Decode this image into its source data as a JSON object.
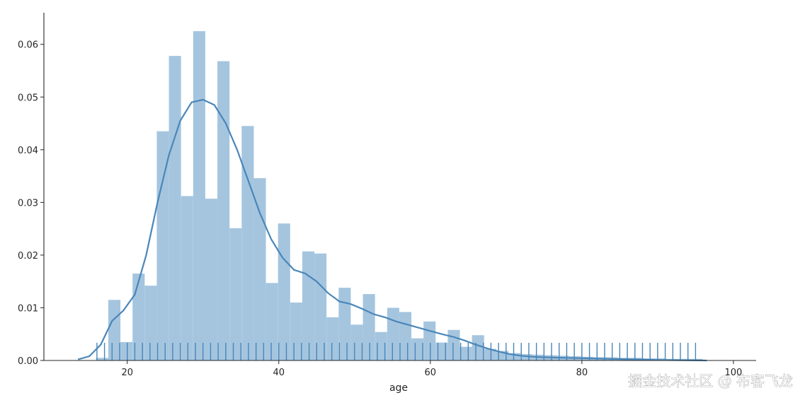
{
  "chart_data": {
    "type": "bar",
    "title": "",
    "xlabel": "age",
    "ylabel": "",
    "xlim": [
      9,
      103
    ],
    "ylim": [
      0,
      0.066
    ],
    "xticks": [
      20,
      40,
      60,
      80,
      100
    ],
    "yticks": [
      0.0,
      0.01,
      0.02,
      0.03,
      0.04,
      0.05,
      0.06
    ],
    "ytick_labels": [
      "0.00",
      "0.01",
      "0.02",
      "0.03",
      "0.04",
      "0.05",
      "0.06"
    ],
    "grid": false,
    "legend": "none",
    "bar_color": "#a5c5df",
    "line_color": "#4a86b8",
    "rug_color": "#4a86b8",
    "bin_width": 1.6,
    "bins_start": 15.9,
    "bars": [
      0.0005,
      0.0115,
      0.0035,
      0.0165,
      0.0142,
      0.0435,
      0.0578,
      0.0312,
      0.0625,
      0.0307,
      0.0568,
      0.0251,
      0.0445,
      0.0346,
      0.0147,
      0.026,
      0.011,
      0.0207,
      0.0203,
      0.0082,
      0.0138,
      0.0068,
      0.0126,
      0.0054,
      0.01,
      0.0092,
      0.0042,
      0.0074,
      0.0034,
      0.0058,
      0.0026,
      0.0048,
      0.0022,
      0.0018,
      0.0014,
      0.0012,
      0.0011,
      0.001,
      0.0009,
      0.0008,
      0.0007,
      0.0006,
      0.0006,
      0.0005,
      0.0005,
      0.0004,
      0.0004,
      0.0003,
      0.0003,
      0.0003
    ],
    "kde": {
      "x": [
        13.5,
        15,
        16.5,
        18,
        19.5,
        21,
        22.5,
        24,
        25.5,
        27,
        28.5,
        30,
        31.5,
        33,
        34.5,
        36,
        37.5,
        39,
        40.5,
        42,
        43.5,
        45,
        46.5,
        48,
        49.5,
        51,
        52.5,
        54,
        55.5,
        57,
        58.5,
        60,
        61.5,
        63,
        64.5,
        66,
        67.5,
        69,
        70.5,
        72,
        73.5,
        75,
        78,
        81,
        84,
        87,
        90,
        93,
        96.5
      ],
      "y": [
        0.0002,
        0.0008,
        0.003,
        0.0075,
        0.0095,
        0.0125,
        0.02,
        0.03,
        0.039,
        0.0455,
        0.049,
        0.0495,
        0.0485,
        0.045,
        0.04,
        0.034,
        0.028,
        0.023,
        0.0195,
        0.0172,
        0.0165,
        0.015,
        0.0128,
        0.0112,
        0.0107,
        0.0098,
        0.0088,
        0.0082,
        0.0074,
        0.0068,
        0.0062,
        0.0056,
        0.005,
        0.0045,
        0.0038,
        0.003,
        0.0023,
        0.0017,
        0.0012,
        0.0009,
        0.0007,
        0.0006,
        0.0005,
        0.0004,
        0.0003,
        0.0002,
        0.0001,
        5e-05,
        0
      ]
    },
    "rug_x": [
      16,
      17,
      18,
      19,
      20,
      21,
      22,
      23,
      24,
      25,
      26,
      27,
      28,
      29,
      30,
      31,
      32,
      33,
      34,
      35,
      36,
      37,
      38,
      39,
      40,
      41,
      42,
      43,
      44,
      45,
      46,
      47,
      48,
      49,
      50,
      51,
      52,
      53,
      54,
      55,
      56,
      57,
      58,
      59,
      60,
      61,
      62,
      63,
      64,
      65,
      66,
      67,
      68,
      69,
      70,
      71,
      72,
      73,
      74,
      75,
      76,
      77,
      78,
      79,
      80,
      81,
      82,
      83,
      84,
      85,
      86,
      87,
      88,
      89,
      90,
      91,
      92,
      93,
      94,
      95
    ]
  },
  "watermark": "掘金技术社区 @ 布客飞龙"
}
